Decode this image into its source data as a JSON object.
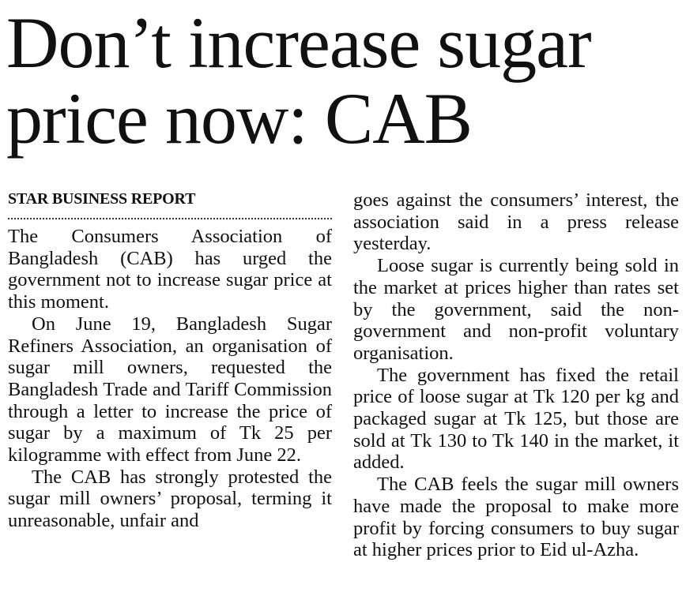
{
  "headline": "Don’t increase sugar price now: CAB",
  "byline": "STAR BUSINESS REPORT",
  "left_column": [
    "The Consumers Association of Bangladesh (CAB) has urged the government not to increase sugar price at this moment.",
    "On June 19, Bangladesh Sugar Refiners Association, an organisation of sugar mill owners, requested the Bangladesh Trade and Tariff Commission through a letter to increase the price of sugar by a maximum of Tk 25 per kilogramme with effect from June 22.",
    "The CAB has strongly protested the sugar mill owners’ proposal, terming it unreasonable, unfair and"
  ],
  "right_column": [
    "goes against the consumers’ interest, the association said in a press release yesterday.",
    "Loose sugar is currently being sold in the market at prices higher than rates set by the government, said the non-government and non-profit voluntary organisation.",
    "The government has fixed the retail price of loose sugar at Tk 120 per kg and packaged sugar at Tk 125, but those are sold at Tk 130 to Tk 140 in the market, it added.",
    "The CAB feels the sugar mill owners have made the proposal to make more profit by forcing consumers to buy sugar at higher prices prior to Eid ul-Azha."
  ]
}
